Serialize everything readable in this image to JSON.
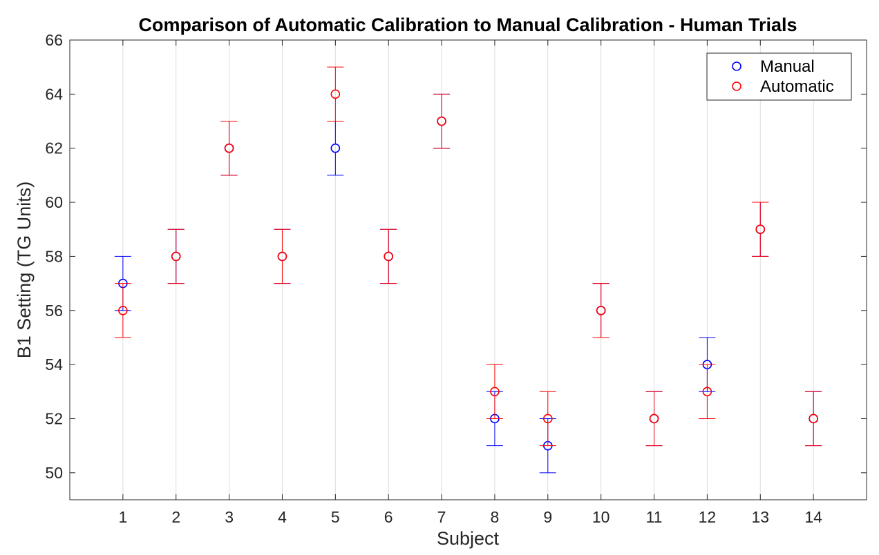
{
  "chart_data": {
    "type": "scatter",
    "title": "Comparison of Automatic Calibration to Manual Calibration - Human Trials",
    "xlabel": "Subject",
    "ylabel": "B1 Setting (TG Units)",
    "xlim": [
      0,
      15
    ],
    "ylim": [
      49,
      66
    ],
    "xticks": [
      1,
      2,
      3,
      4,
      5,
      6,
      7,
      8,
      9,
      10,
      11,
      12,
      13,
      14
    ],
    "yticks": [
      50,
      52,
      54,
      56,
      58,
      60,
      62,
      64,
      66
    ],
    "grid": "x",
    "legend_position": "top-right",
    "error_bar": 1,
    "series": [
      {
        "name": "Manual",
        "color": "#0000ff",
        "marker": "circle",
        "x": [
          1,
          2,
          3,
          4,
          5,
          6,
          7,
          8,
          9,
          10,
          11,
          12,
          13,
          14
        ],
        "values": [
          57,
          58,
          62,
          58,
          62,
          58,
          63,
          52,
          51,
          56,
          52,
          54,
          59,
          52
        ]
      },
      {
        "name": "Automatic",
        "color": "#ff0000",
        "marker": "circle",
        "x": [
          1,
          2,
          3,
          4,
          5,
          6,
          7,
          8,
          9,
          10,
          11,
          12,
          13,
          14
        ],
        "values": [
          56,
          58,
          62,
          58,
          64,
          58,
          63,
          53,
          52,
          56,
          52,
          53,
          59,
          52
        ]
      }
    ]
  }
}
